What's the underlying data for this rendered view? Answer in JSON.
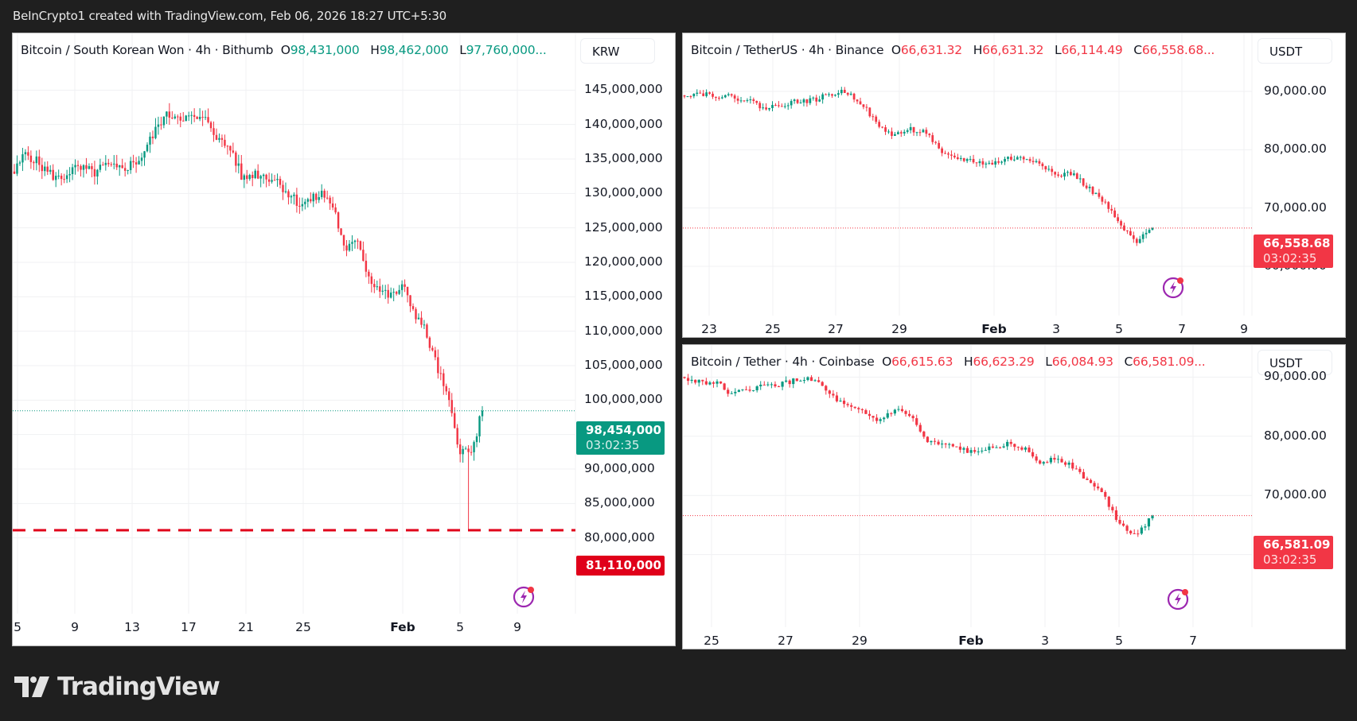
{
  "header": {
    "text": "BeInCrypto1 created with TradingView.com, Feb 06, 2026 18:27 UTC+5:30"
  },
  "brand": {
    "logo_text": "TradingView"
  },
  "colors": {
    "up": "#089981",
    "down": "#f23645",
    "support_line": "#e0001a",
    "background": "#1f1f1f"
  },
  "panels": {
    "left": {
      "symbol": "Bitcoin / South Korean Won · 4h · Bithumb",
      "o_label": "O",
      "o": "98,431,000",
      "h_label": "H",
      "h": "98,462,000",
      "l_label": "L",
      "l": "97,760,000...",
      "currency": "KRW",
      "y_ticks": [
        "145,000,000",
        "140,000,000",
        "135,000,000",
        "130,000,000",
        "125,000,000",
        "120,000,000",
        "115,000,000",
        "110,000,000",
        "105,000,000",
        "100,000,000",
        "95,000,000",
        "90,000,000",
        "85,000,000",
        "80,000,000"
      ],
      "x_ticks": [
        "5",
        "9",
        "13",
        "17",
        "21",
        "25",
        "Feb",
        "5",
        "9"
      ],
      "last_price": "98,454,000",
      "countdown": "03:02:35",
      "support_price": "81,110,000"
    },
    "top_right": {
      "symbol": "Bitcoin / TetherUS · 4h · Binance",
      "o_label": "O",
      "o": "66,631.32",
      "h_label": "H",
      "h": "66,631.32",
      "l_label": "L",
      "l": "66,114.49",
      "c_label": "C",
      "c": "66,558.68...",
      "currency": "USDT",
      "y_ticks": [
        "90,000.00",
        "80,000.00",
        "70,000.00",
        "60,000.00"
      ],
      "x_ticks": [
        "23",
        "25",
        "27",
        "29",
        "Feb",
        "3",
        "5",
        "7",
        "9"
      ],
      "last_price": "66,558.68",
      "countdown": "03:02:35"
    },
    "bottom_right": {
      "symbol": "Bitcoin / Tether · 4h · Coinbase",
      "o_label": "O",
      "o": "66,615.63",
      "h_label": "H",
      "h": "66,623.29",
      "l_label": "L",
      "l": "66,084.93",
      "c_label": "C",
      "c": "66,581.09...",
      "currency": "USDT",
      "y_ticks": [
        "90,000.00",
        "80,000.00",
        "70,000.00",
        "60,000.00"
      ],
      "x_ticks": [
        "25",
        "27",
        "29",
        "Feb",
        "3",
        "5",
        "7"
      ],
      "last_price": "66,581.09",
      "countdown": "03:02:35"
    }
  },
  "chart_data": [
    {
      "type": "candlestick",
      "title": "Bitcoin / South Korean Won · 4h · Bithumb",
      "ylabel": "KRW",
      "ylim": [
        75000000,
        147000000
      ],
      "x_ticks": [
        "5",
        "9",
        "13",
        "17",
        "21",
        "25",
        "Feb",
        "5",
        "9"
      ],
      "approx_closes": [
        133000000,
        136000000,
        134500000,
        133000000,
        132000000,
        133500000,
        133500000,
        133000000,
        134000000,
        133500000,
        134000000,
        135000000,
        138000000,
        141000000,
        141500000,
        141000000,
        140800000,
        140500000,
        137500000,
        136500000,
        132000000,
        133000000,
        132500000,
        132000000,
        130000000,
        128500000,
        129000000,
        130000000,
        128000000,
        121000000,
        124000000,
        118000000,
        116000000,
        115000000,
        116500000,
        113000000,
        110000000,
        105000000,
        100000000,
        93000000,
        92000000,
        98454000
      ],
      "support_level": 81110000,
      "last_price": 98454000
    },
    {
      "type": "candlestick",
      "title": "Bitcoin / TetherUS · 4h · Binance",
      "ylabel": "USDT",
      "ylim": [
        57000,
        93000
      ],
      "x_ticks": [
        "23",
        "25",
        "27",
        "29",
        "Feb",
        "3",
        "5",
        "7",
        "9"
      ],
      "approx_closes": [
        89500,
        89700,
        89300,
        89000,
        88500,
        87000,
        87800,
        88300,
        88500,
        89500,
        90000,
        88000,
        84000,
        82500,
        83500,
        83000,
        79000,
        78500,
        78000,
        77500,
        78500,
        78500,
        78000,
        75500,
        76000,
        73500,
        71000,
        67000,
        64000,
        66558.68
      ],
      "last_price": 66558.68
    },
    {
      "type": "candlestick",
      "title": "Bitcoin / Tether · 4h · Coinbase",
      "ylabel": "USDT",
      "ylim": [
        57000,
        93000
      ],
      "x_ticks": [
        "25",
        "27",
        "29",
        "Feb",
        "3",
        "5",
        "7"
      ],
      "approx_closes": [
        89600,
        89300,
        89000,
        87000,
        88000,
        88500,
        88800,
        89500,
        89800,
        87000,
        85000,
        84000,
        82500,
        84500,
        83500,
        79000,
        78500,
        78000,
        77000,
        78500,
        78600,
        78000,
        75500,
        76500,
        75000,
        72500,
        70000,
        65000,
        63500,
        66581.09
      ],
      "last_price": 66581.09
    }
  ]
}
